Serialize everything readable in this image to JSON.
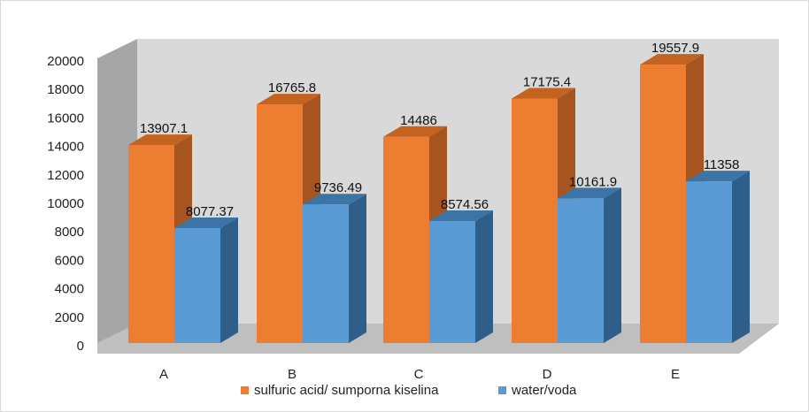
{
  "chart_data": {
    "type": "bar",
    "style": "3d-clustered-column",
    "categories": [
      "A",
      "B",
      "C",
      "D",
      "E"
    ],
    "series": [
      {
        "name": "sulfuric acid/ sumporna kiselina",
        "values": [
          13907.1,
          16765.8,
          14486,
          17175.4,
          19557.9
        ],
        "color": "#ED7D31",
        "side_color": "#A65520",
        "top_color": "#C4621F"
      },
      {
        "name": "water/voda",
        "values": [
          8077.37,
          9736.49,
          8574.56,
          10161.9,
          11358
        ],
        "color": "#5B9BD5",
        "side_color": "#2E5F8A",
        "top_color": "#3D74A6"
      }
    ],
    "data_labels": [
      [
        "13907.1",
        "16765.8",
        "14486",
        "17175.4",
        "19557.9"
      ],
      [
        "8077.37",
        "9736.49",
        "8574.56",
        "10161.9",
        "11358"
      ]
    ],
    "y_ticks": [
      "0",
      "2000",
      "4000",
      "6000",
      "8000",
      "10000",
      "12000",
      "14000",
      "16000",
      "18000",
      "20000"
    ],
    "ylim": [
      0,
      20000
    ],
    "grid": false,
    "legend_position": "bottom",
    "wall_color": "#D9D9D9",
    "wall_side_color": "#A6A6A6",
    "floor_color": "#BFBFBF"
  }
}
